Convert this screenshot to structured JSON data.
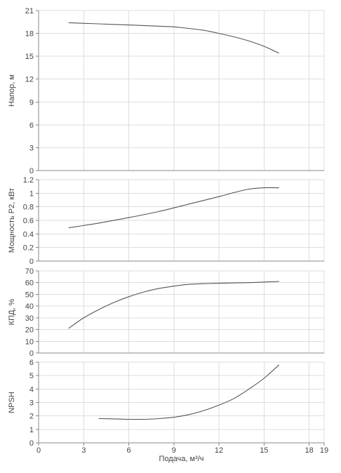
{
  "chart_data": [
    {
      "type": "line",
      "ylabel": "Напор, м",
      "ylim": [
        0,
        21
      ],
      "yticks": [
        0,
        3,
        6,
        9,
        12,
        15,
        18,
        21
      ],
      "xlim": [
        0,
        19
      ],
      "grid": true,
      "series": [
        {
          "x": [
            2,
            4,
            6,
            8,
            9,
            10,
            11,
            12,
            13,
            14,
            15,
            16
          ],
          "y": [
            19.4,
            19.25,
            19.1,
            18.95,
            18.85,
            18.65,
            18.4,
            18.0,
            17.55,
            17.0,
            16.3,
            15.4
          ]
        }
      ]
    },
    {
      "type": "line",
      "ylabel": "Мощность P2, кВт",
      "ylim": [
        0,
        1.2
      ],
      "yticks": [
        "0",
        "0.2",
        "0.4",
        "0.6",
        "0.8",
        "1",
        "1.2"
      ],
      "xlim": [
        0,
        19
      ],
      "grid": true,
      "series": [
        {
          "x": [
            2,
            4,
            6,
            8,
            10,
            12,
            13,
            14,
            15,
            16
          ],
          "y": [
            0.49,
            0.56,
            0.64,
            0.73,
            0.84,
            0.95,
            1.01,
            1.06,
            1.08,
            1.08
          ]
        }
      ]
    },
    {
      "type": "line",
      "ylabel": "КПД, %",
      "ylim": [
        0,
        70
      ],
      "yticks": [
        0,
        10,
        20,
        30,
        40,
        50,
        60,
        70
      ],
      "xlim": [
        0,
        19
      ],
      "grid": true,
      "series": [
        {
          "x": [
            2,
            3,
            4,
            5,
            6,
            7,
            8,
            9,
            10,
            12,
            14,
            16
          ],
          "y": [
            21,
            30,
            37,
            43,
            48,
            52,
            55,
            57,
            58.5,
            59.5,
            60,
            61
          ]
        }
      ]
    },
    {
      "type": "line",
      "ylabel": "NPSH",
      "ylim": [
        0,
        6
      ],
      "yticks": [
        0,
        1,
        2,
        3,
        4,
        5,
        6
      ],
      "xlim": [
        0,
        19
      ],
      "xticks": [
        0,
        3,
        6,
        9,
        12,
        15,
        18,
        19
      ],
      "xlabel": "Подача, м³/ч",
      "grid": true,
      "series": [
        {
          "x": [
            4,
            5,
            6,
            7,
            8,
            9,
            10,
            11,
            12,
            13,
            14,
            15,
            16
          ],
          "y": [
            1.8,
            1.78,
            1.75,
            1.75,
            1.8,
            1.9,
            2.1,
            2.4,
            2.8,
            3.3,
            4.0,
            4.8,
            5.8
          ]
        }
      ]
    }
  ]
}
